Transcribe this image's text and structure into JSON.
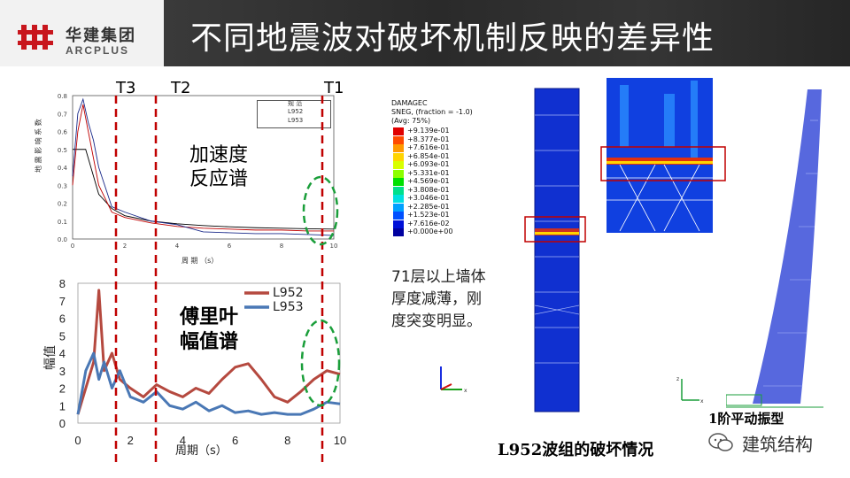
{
  "header": {
    "logo_cn": "华建集团",
    "logo_en": "ARCPLUS",
    "title": "不同地震波对破坏机制反映的差异性"
  },
  "colors": {
    "accent_red": "#c00000",
    "green_dash": "#1a9e3a",
    "series_red": "#b5493f",
    "series_blue": "#4a78b5"
  },
  "period_markers": {
    "t3": "T3",
    "t2": "T2",
    "t1": "T1"
  },
  "top_chart": {
    "annotation_line1": "加速度",
    "annotation_line2": "反应谱",
    "legend": [
      "规 范",
      "L952",
      "L953"
    ],
    "xlabel": "周 期 （s）",
    "ylabel": "地 震 影 响 系 数",
    "y_ticks": [
      "0.8",
      "0.7",
      "0.6",
      "0.5",
      "0.4",
      "0.3",
      "0.2",
      "0.1",
      "0.0"
    ],
    "x_ticks": [
      "0",
      "2",
      "4",
      "6",
      "8",
      "10"
    ]
  },
  "bottom_chart": {
    "annotation_line1": "傅里叶",
    "annotation_line2": "幅值谱",
    "legend": [
      "L952",
      "L953"
    ],
    "xlabel": "周期（s）",
    "ylabel": "幅值",
    "y_ticks": [
      "8",
      "7",
      "6",
      "5",
      "4",
      "3",
      "2",
      "1",
      "0"
    ],
    "x_ticks": [
      "0",
      "2",
      "4",
      "6",
      "8",
      "10"
    ]
  },
  "chart_data": [
    {
      "type": "line",
      "title": "",
      "xlabel": "周 期 （s）",
      "ylabel": "地 震 影 响 系 数",
      "xlim": [
        0,
        10
      ],
      "ylim": [
        0,
        0.8
      ],
      "series": [
        {
          "name": "规 范",
          "x": [
            0,
            0.1,
            0.5,
            1,
            1.5,
            2,
            3,
            4,
            5,
            6,
            7,
            8,
            9,
            10
          ],
          "y": [
            0.5,
            0.5,
            0.5,
            0.25,
            0.17,
            0.13,
            0.1,
            0.085,
            0.075,
            0.068,
            0.063,
            0.06,
            0.057,
            0.055
          ]
        },
        {
          "name": "L952",
          "x": [
            0,
            0.2,
            0.4,
            0.6,
            0.8,
            1,
            1.5,
            2,
            3,
            4,
            5,
            6,
            7,
            8,
            9,
            10
          ],
          "y": [
            0.3,
            0.6,
            0.75,
            0.6,
            0.45,
            0.3,
            0.15,
            0.12,
            0.09,
            0.07,
            0.06,
            0.055,
            0.05,
            0.05,
            0.045,
            0.045
          ]
        },
        {
          "name": "L953",
          "x": [
            0,
            0.2,
            0.4,
            0.6,
            0.8,
            1,
            1.5,
            2,
            3,
            4,
            5,
            6,
            7,
            8,
            9,
            10
          ],
          "y": [
            0.35,
            0.7,
            0.78,
            0.65,
            0.55,
            0.4,
            0.18,
            0.15,
            0.1,
            0.08,
            0.04,
            0.035,
            0.03,
            0.03,
            0.025,
            0.02
          ]
        }
      ]
    },
    {
      "type": "line",
      "title": "",
      "xlabel": "周期（s）",
      "ylabel": "幅值",
      "xlim": [
        0,
        10
      ],
      "ylim": [
        0,
        8
      ],
      "series": [
        {
          "name": "L952",
          "x": [
            0,
            0.3,
            0.6,
            0.8,
            1,
            1.3,
            1.6,
            2,
            2.5,
            3,
            3.5,
            4,
            4.5,
            5,
            5.5,
            6,
            6.5,
            7,
            7.5,
            8,
            8.5,
            9,
            9.5,
            10
          ],
          "y": [
            0.5,
            2,
            3.5,
            7.6,
            3,
            4,
            2.5,
            2,
            1.5,
            2.2,
            1.8,
            1.5,
            2,
            1.7,
            2.5,
            3.2,
            3.4,
            2.5,
            1.5,
            1.2,
            1.8,
            2.5,
            3,
            2.8
          ]
        },
        {
          "name": "L953",
          "x": [
            0,
            0.3,
            0.6,
            0.8,
            1,
            1.3,
            1.6,
            2,
            2.5,
            3,
            3.5,
            4,
            4.5,
            5,
            5.5,
            6,
            6.5,
            7,
            7.5,
            8,
            8.5,
            9,
            9.5,
            10
          ],
          "y": [
            0.5,
            3,
            4,
            2.5,
            3.5,
            2,
            3,
            1.5,
            1.2,
            1.8,
            1,
            0.8,
            1.2,
            0.7,
            1,
            0.6,
            0.7,
            0.5,
            0.6,
            0.5,
            0.5,
            0.8,
            1.2,
            1.1
          ]
        }
      ]
    }
  ],
  "damage_legend": {
    "title": "DAMAGEC",
    "line2": "SNEG, (fraction = -1.0)",
    "line3": "(Avg: 75%)",
    "levels": [
      "+9.139e-01",
      "+8.377e-01",
      "+7.616e-01",
      "+6.854e-01",
      "+6.093e-01",
      "+5.331e-01",
      "+4.569e-01",
      "+3.808e-01",
      "+3.046e-01",
      "+2.285e-01",
      "+1.523e-01",
      "+7.616e-02",
      "+0.000e+00"
    ],
    "level_colors": [
      "#e00000",
      "#ff4a00",
      "#ff9a00",
      "#ffd400",
      "#d8ff00",
      "#8cff00",
      "#00e000",
      "#00e08c",
      "#00e0e0",
      "#00a0ff",
      "#0050ff",
      "#0010d8",
      "#0000a0"
    ]
  },
  "note": {
    "line1": "71层以上墙体",
    "line2": "厚度减薄，刚",
    "line3": "度突变明显。"
  },
  "captions": {
    "mode": "1阶平动振型",
    "damage": "L952波组的破坏情况",
    "watermark": "建筑结构"
  }
}
